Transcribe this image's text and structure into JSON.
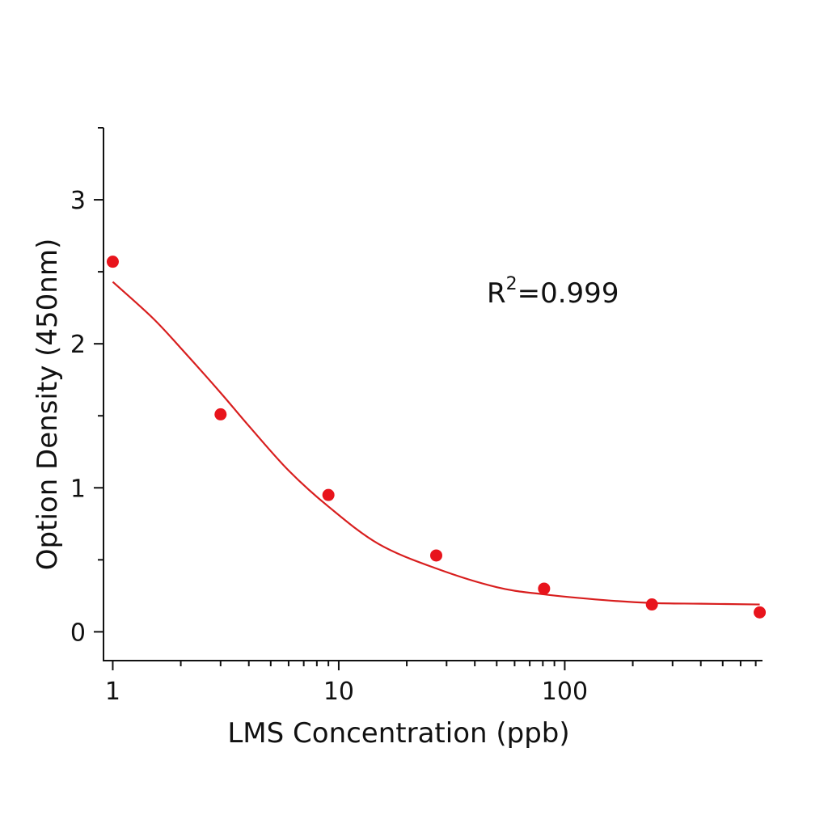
{
  "chart_data": {
    "type": "scatter",
    "xlabel": "LMS Concentration (ppb)",
    "ylabel": "Option Density (450nm)",
    "xscale": "log",
    "xlim": [
      0.91,
      750
    ],
    "ylim": [
      -0.2,
      3.5
    ],
    "x_ticks": [
      1,
      10,
      100
    ],
    "x_tick_labels": [
      "1",
      "10",
      "100"
    ],
    "y_ticks": [
      0,
      1,
      2,
      3
    ],
    "y_tick_labels": [
      "0",
      "1",
      "2",
      "3"
    ],
    "grid": false,
    "annotation": {
      "base": "R",
      "sup": "2",
      "rest": "=0.999"
    },
    "colors": {
      "points": "#e8141c",
      "curve": "#d81e1e",
      "axis": "#111111"
    },
    "points": {
      "x": [
        1,
        3,
        9,
        27,
        81,
        243,
        729
      ],
      "y": [
        2.57,
        1.51,
        0.95,
        0.53,
        0.3,
        0.19,
        0.135
      ]
    },
    "fit_curve": {
      "x": [
        1,
        1.5,
        2,
        3,
        4,
        6,
        9,
        15,
        27,
        50,
        81,
        150,
        243,
        400,
        729
      ],
      "y": [
        2.43,
        2.18,
        1.97,
        1.66,
        1.43,
        1.12,
        0.87,
        0.61,
        0.44,
        0.31,
        0.26,
        0.22,
        0.2,
        0.195,
        0.19
      ]
    }
  }
}
